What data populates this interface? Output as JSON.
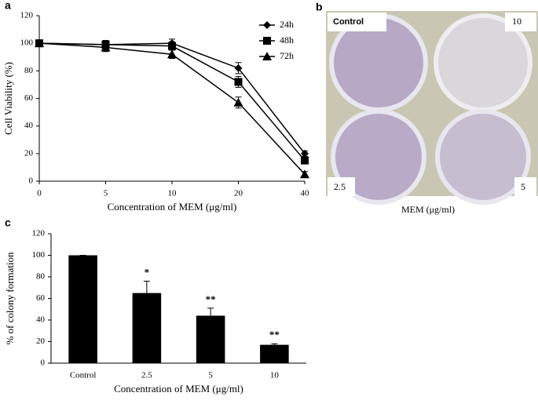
{
  "chart_data": [
    {
      "type": "line",
      "panel_label": "a",
      "categories": [
        "0",
        "5",
        "10",
        "20",
        "40"
      ],
      "xlabel": "Concentration of MEM (μg/ml)",
      "ylabel": "Cell Viability (%)",
      "ylim": [
        0,
        120
      ],
      "yticks": [
        0,
        20,
        40,
        60,
        80,
        100,
        120
      ],
      "grid": false,
      "legend": "upper right",
      "series": [
        {
          "name": "24h",
          "color": "#000000",
          "marker": "diamond",
          "values": [
            100,
            99,
            100,
            82,
            20
          ],
          "errors": [
            2,
            3,
            3,
            4,
            2
          ]
        },
        {
          "name": "48h",
          "color": "#000000",
          "marker": "square",
          "values": [
            100,
            99,
            98,
            72,
            15
          ],
          "errors": [
            2,
            3,
            3,
            4,
            2
          ]
        },
        {
          "name": "72h",
          "color": "#000000",
          "marker": "triangle",
          "values": [
            100,
            97,
            92,
            57,
            5
          ],
          "errors": [
            2,
            3,
            3,
            4,
            2
          ]
        }
      ]
    },
    {
      "type": "bar",
      "panel_label": "c",
      "categories": [
        "Control",
        "2.5",
        "5",
        "10"
      ],
      "xlabel": "Concentration of MEM (μg/ml)",
      "ylabel": "% of colony formation",
      "ylim": [
        0,
        120
      ],
      "yticks": [
        0,
        20,
        40,
        60,
        80,
        100,
        120
      ],
      "grid": false,
      "color": "#000000",
      "values": [
        100,
        65,
        44,
        17
      ],
      "errors": [
        0,
        11,
        7,
        1
      ],
      "annotations": [
        {
          "category": "2.5",
          "text": "*"
        },
        {
          "category": "5",
          "text": "**"
        },
        {
          "category": "10",
          "text": "**"
        }
      ]
    }
  ],
  "image_panel": {
    "label": "b",
    "corner_labels": [
      "Control",
      "10",
      "2.5",
      "5"
    ],
    "xlabel": "MEM (μg/ml)"
  }
}
